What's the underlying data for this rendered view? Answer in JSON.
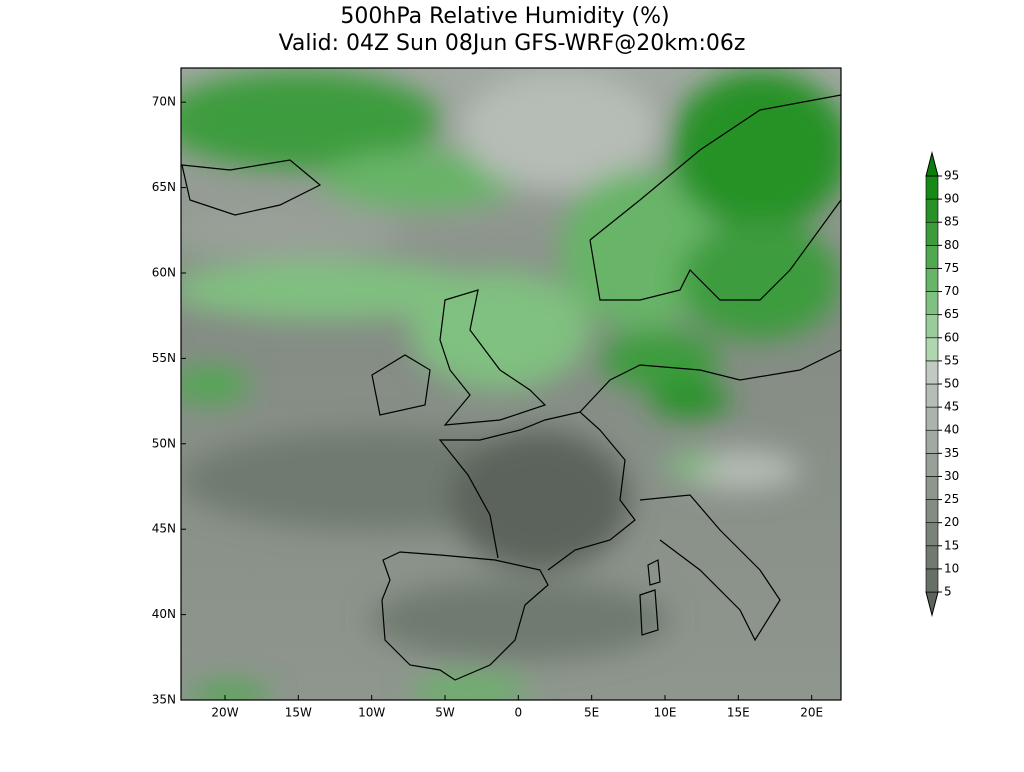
{
  "title": [
    "500hPa Relative Humidity (%)",
    "Valid: 04Z Sun 08Jun GFS-WRF@20km:06z"
  ],
  "map": {
    "lon_range": [
      -23,
      22
    ],
    "lat_range": [
      35,
      72
    ],
    "lat_ticks": [
      {
        "value": 70,
        "label": "70N"
      },
      {
        "value": 65,
        "label": "65N"
      },
      {
        "value": 60,
        "label": "60N"
      },
      {
        "value": 55,
        "label": "55N"
      },
      {
        "value": 50,
        "label": "50N"
      },
      {
        "value": 45,
        "label": "45N"
      },
      {
        "value": 40,
        "label": "40N"
      },
      {
        "value": 35,
        "label": "35N"
      }
    ],
    "lon_ticks": [
      {
        "value": -20,
        "label": "20W"
      },
      {
        "value": -15,
        "label": "15W"
      },
      {
        "value": -10,
        "label": "10W"
      },
      {
        "value": -5,
        "label": "5W"
      },
      {
        "value": 0,
        "label": "0"
      },
      {
        "value": 5,
        "label": "5E"
      },
      {
        "value": 10,
        "label": "10E"
      },
      {
        "value": 15,
        "label": "15E"
      },
      {
        "value": 20,
        "label": "20E"
      }
    ]
  },
  "colorbar": {
    "levels": [
      5,
      10,
      15,
      20,
      25,
      30,
      35,
      40,
      45,
      50,
      55,
      60,
      65,
      70,
      75,
      80,
      85,
      90,
      95
    ],
    "colors": [
      "#5c645c",
      "#667066",
      "#707a70",
      "#7a837a",
      "#848c84",
      "#8e968e",
      "#98a098",
      "#a2a9a2",
      "#acb2ac",
      "#b6bcb6",
      "#c2c8c2",
      "#b0d6b0",
      "#98cc98",
      "#80c080",
      "#68b468",
      "#50a850",
      "#3c9c3c",
      "#289228",
      "#168a16",
      "#0a800a"
    ]
  }
}
